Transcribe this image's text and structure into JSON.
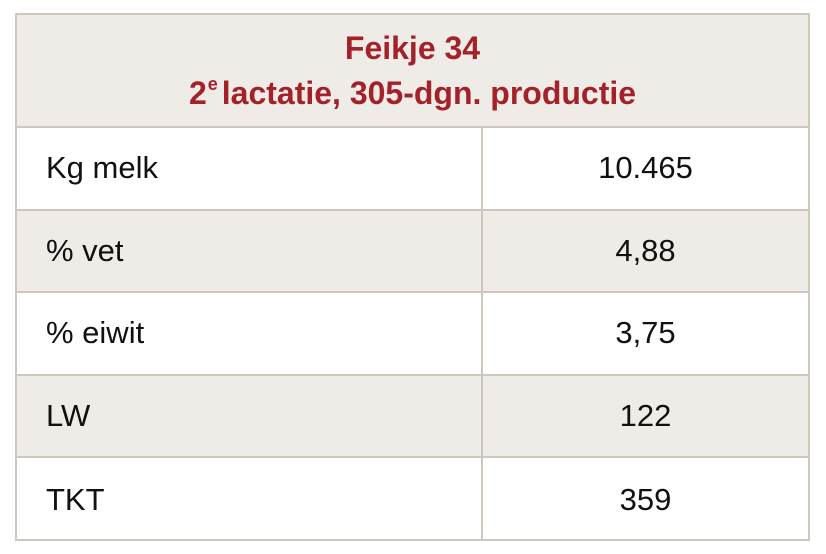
{
  "table": {
    "title_line1": "Feikje 34",
    "title_line2_number": "2",
    "title_line2_superscript": "e",
    "title_line2_rest": "lactatie, 305-dgn. productie",
    "rows": [
      {
        "label": "Kg melk",
        "value": "10.465"
      },
      {
        "label": "% vet",
        "value": "4,88"
      },
      {
        "label": "% eiwit",
        "value": "3,75"
      },
      {
        "label": "LW",
        "value": "122"
      },
      {
        "label": "TKT",
        "value": "359"
      }
    ]
  },
  "colors": {
    "title": "#a3222a",
    "header_background": "#efebe6",
    "border": "#cfc7bd"
  }
}
